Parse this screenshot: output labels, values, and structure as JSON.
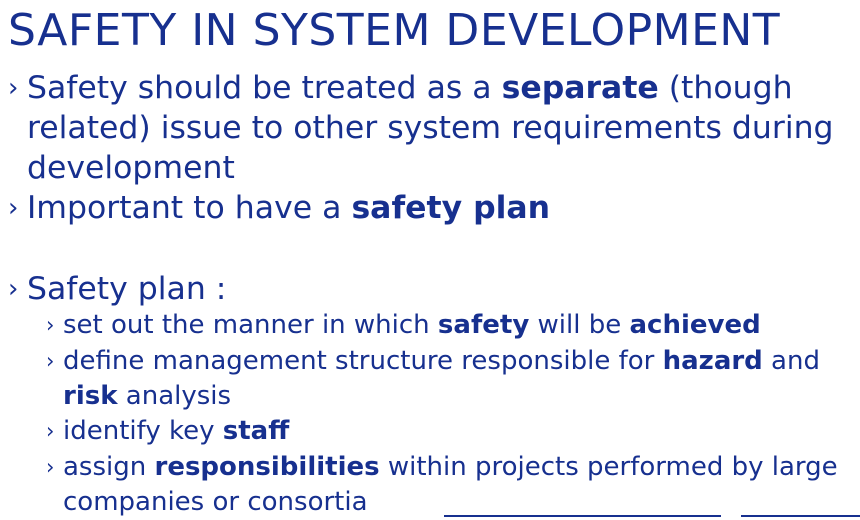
{
  "slide": {
    "title": "SAFETY IN SYSTEM DEVELOPMENT",
    "bullet_glyph": "›",
    "b1": {
      "t1": "Safety should be treated as a ",
      "b1": "separate",
      "t2": " (though related) issue to other system requirements during development"
    },
    "b2": {
      "t1": "Important to have a ",
      "b1": "safety plan"
    },
    "b3": {
      "t1": "Safety plan :"
    },
    "s1": {
      "t1": "set out the manner in which ",
      "b1": "safety",
      "t2": " will be ",
      "b2": "achieved"
    },
    "s2": {
      "t1": "define management structure responsible for ",
      "b1": "hazard",
      "t2": " and ",
      "b2": "risk",
      "t3": " analysis"
    },
    "s3": {
      "t1": "identify key ",
      "b1": "staff"
    },
    "s4": {
      "t1": "assign ",
      "b1": "responsibilities",
      "t2": " within projects performed by large companies or consortia"
    },
    "colors": {
      "text": "#17308f",
      "background": "#ffffff"
    }
  }
}
